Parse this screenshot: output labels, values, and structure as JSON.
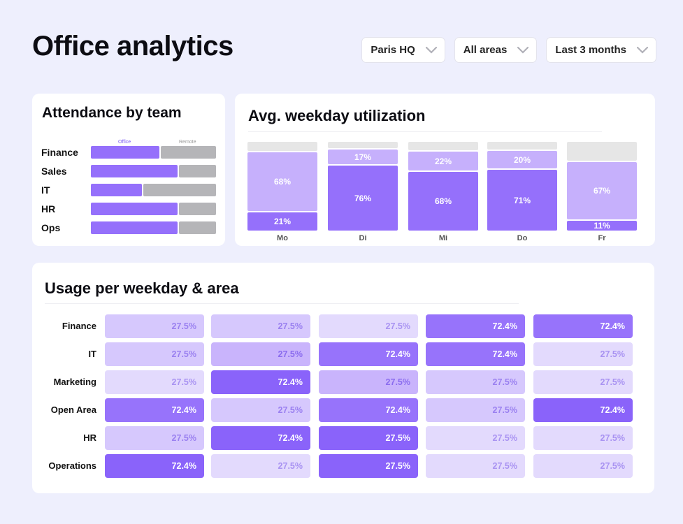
{
  "header": {
    "title": "Office analytics",
    "filters": [
      {
        "label": "Paris HQ"
      },
      {
        "label": "All areas"
      },
      {
        "label": "Last 3 months"
      }
    ]
  },
  "attendance": {
    "title": "Attendance by team",
    "legend": {
      "office": "Office",
      "remote": "Remote"
    },
    "colors": {
      "office": "#9570fb",
      "remote": "#b5b5b8"
    },
    "teams": [
      {
        "name": "Finance",
        "office_share": 0.55
      },
      {
        "name": "Sales",
        "office_share": 0.69
      },
      {
        "name": "IT",
        "office_share": 0.41
      },
      {
        "name": "HR",
        "office_share": 0.69
      },
      {
        "name": "Ops",
        "office_share": 0.69
      }
    ]
  },
  "utilization": {
    "title": "Avg. weekday utilization",
    "chart_data": {
      "type": "bar",
      "stacked": true,
      "categories": [
        "Mo",
        "Di",
        "Mi",
        "Do",
        "Fr"
      ],
      "series": [
        {
          "name": "bottom",
          "color": "#9570fb",
          "values": [
            21,
            76,
            68,
            71,
            11
          ],
          "labels": [
            "21%",
            "76%",
            "68%",
            "71%",
            "11%"
          ]
        },
        {
          "name": "middle",
          "color": "#c6b0fc",
          "values": [
            68,
            17,
            22,
            20,
            67
          ],
          "labels": [
            "68%",
            "17%",
            "22%",
            "20%",
            "67%"
          ]
        },
        {
          "name": "top",
          "color": "#e6e6e6",
          "values": [
            11,
            7,
            10,
            9,
            22
          ]
        }
      ],
      "ylim": [
        0,
        100
      ]
    }
  },
  "heatmap": {
    "title": "Usage per weekday & area",
    "rows": [
      {
        "label": "Finance",
        "cells": [
          {
            "v": "27.5%",
            "l": 1
          },
          {
            "v": "27.5%",
            "l": 1
          },
          {
            "v": "27.5%",
            "l": 0
          },
          {
            "v": "72.4%",
            "l": 3
          },
          {
            "v": "72.4%",
            "l": 3
          }
        ]
      },
      {
        "label": "IT",
        "cells": [
          {
            "v": "27.5%",
            "l": 1
          },
          {
            "v": "27.5%",
            "l": 2
          },
          {
            "v": "72.4%",
            "l": 3
          },
          {
            "v": "72.4%",
            "l": 3
          },
          {
            "v": "27.5%",
            "l": 0
          }
        ]
      },
      {
        "label": "Marketing",
        "cells": [
          {
            "v": "27.5%",
            "l": 0
          },
          {
            "v": "72.4%",
            "l": 4
          },
          {
            "v": "27.5%",
            "l": 2
          },
          {
            "v": "27.5%",
            "l": 1
          },
          {
            "v": "27.5%",
            "l": 0
          }
        ]
      },
      {
        "label": "Open Area",
        "cells": [
          {
            "v": "72.4%",
            "l": 3
          },
          {
            "v": "27.5%",
            "l": 1
          },
          {
            "v": "72.4%",
            "l": 3
          },
          {
            "v": "27.5%",
            "l": 1
          },
          {
            "v": "72.4%",
            "l": 4
          }
        ]
      },
      {
        "label": "HR",
        "cells": [
          {
            "v": "27.5%",
            "l": 1
          },
          {
            "v": "72.4%",
            "l": 4
          },
          {
            "v": "27.5%",
            "l": 4
          },
          {
            "v": "27.5%",
            "l": 0
          },
          {
            "v": "27.5%",
            "l": 0
          }
        ]
      },
      {
        "label": "Operations",
        "cells": [
          {
            "v": "72.4%",
            "l": 4
          },
          {
            "v": "27.5%",
            "l": 0
          },
          {
            "v": "27.5%",
            "l": 4
          },
          {
            "v": "27.5%",
            "l": 0
          },
          {
            "v": "27.5%",
            "l": 0
          }
        ]
      }
    ]
  }
}
